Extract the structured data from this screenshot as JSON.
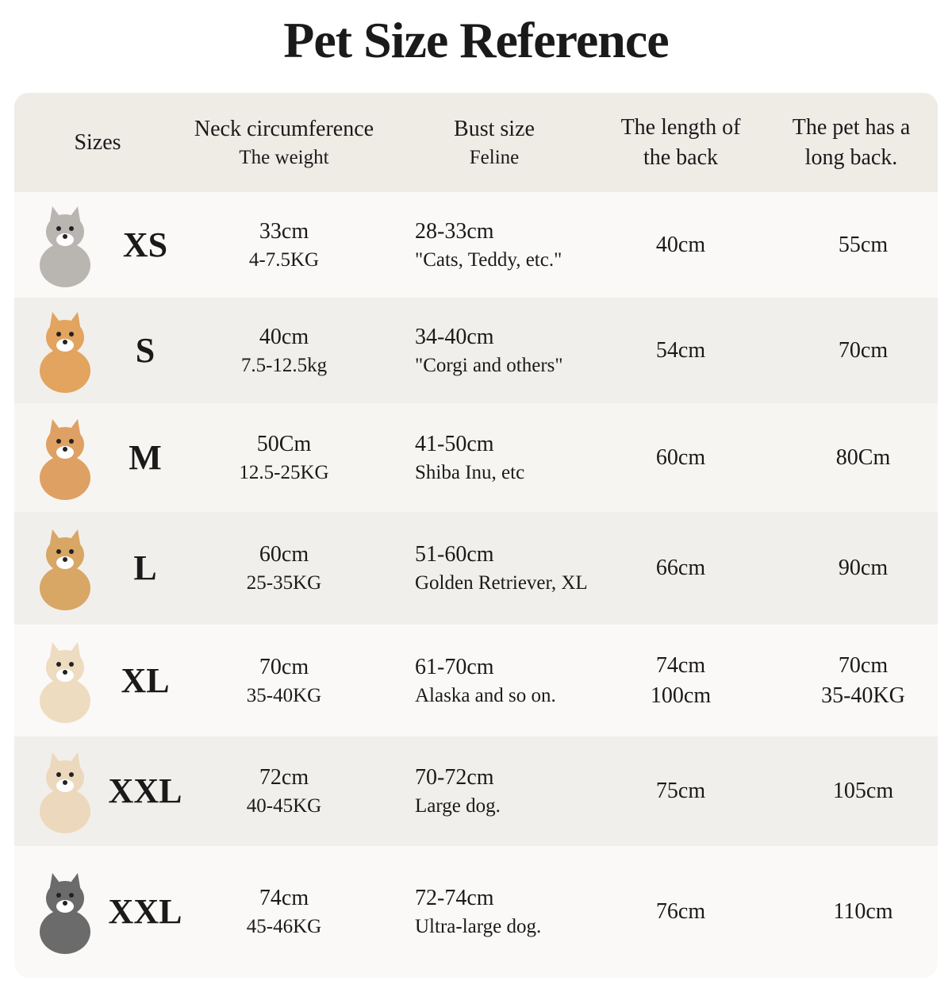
{
  "title": "Pet Size Reference",
  "header": [
    {
      "label": "Sizes"
    },
    {
      "label": "Neck circumference",
      "sub": "The weight"
    },
    {
      "label": "Bust size",
      "sub": "Feline"
    },
    {
      "label": "The length of the back"
    },
    {
      "label": "The pet has a long back."
    }
  ],
  "rows": [
    {
      "size": "XS",
      "neck": "33cm",
      "weight": "4-7.5KG",
      "bust": "28-33cm",
      "breed": "\"Cats, Teddy, etc.\"",
      "back": [
        "40cm"
      ],
      "long": [
        "55cm"
      ]
    },
    {
      "size": "S",
      "neck": "40cm",
      "weight": "7.5-12.5kg",
      "bust": "34-40cm",
      "breed": "\"Corgi and others\"",
      "back": [
        "54cm"
      ],
      "long": [
        "70cm"
      ]
    },
    {
      "size": "M",
      "neck": "50Cm",
      "weight": "12.5-25KG",
      "bust": "41-50cm",
      "breed": "Shiba Inu, etc",
      "back": [
        "60cm"
      ],
      "long": [
        "80Cm"
      ]
    },
    {
      "size": "L",
      "neck": "60cm",
      "weight": "25-35KG",
      "bust": "51-60cm",
      "breed": "Golden Retriever, XL",
      "back": [
        "66cm"
      ],
      "long": [
        "90cm"
      ]
    },
    {
      "size": "XL",
      "neck": "70cm",
      "weight": "35-40KG",
      "bust": "61-70cm",
      "breed": "Alaska and so on.",
      "back": [
        "74cm",
        "100cm"
      ],
      "long": [
        "70cm",
        "35-40KG"
      ]
    },
    {
      "size": "XXL",
      "neck": "72cm",
      "weight": "40-45KG",
      "bust": "70-72cm",
      "breed": "Large dog.",
      "back": [
        "75cm"
      ],
      "long": [
        "105cm"
      ]
    },
    {
      "size": "XXL",
      "neck": "74cm",
      "weight": "45-46KG",
      "bust": "72-74cm",
      "breed": "Ultra-large dog.",
      "back": [
        "76cm"
      ],
      "long": [
        "110cm"
      ]
    }
  ]
}
